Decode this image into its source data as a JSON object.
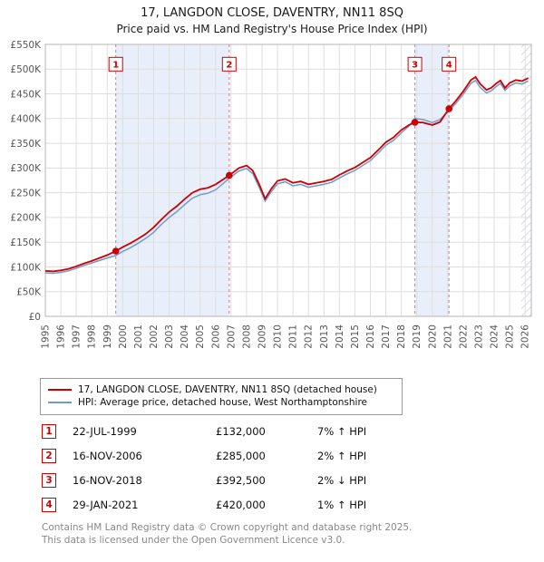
{
  "title": "17, LANGDON CLOSE, DAVENTRY, NN11 8SQ",
  "subtitle": "Price paid vs. HM Land Registry's House Price Index (HPI)",
  "legend": {
    "items": [
      {
        "label": "17, LANGDON CLOSE, DAVENTRY, NN11 8SQ (detached house)",
        "color": "#cc0000"
      },
      {
        "label": "HPI: Average price, detached house, West Northamptonshire",
        "color": "#6e9bd1"
      }
    ]
  },
  "transactions": [
    {
      "num": "1",
      "date": "22-JUL-1999",
      "price": "£132,000",
      "hpi_delta": "7% ↑ HPI",
      "direction": "up",
      "year": 1999.55,
      "value_k": 132
    },
    {
      "num": "2",
      "date": "16-NOV-2006",
      "price": "£285,000",
      "hpi_delta": "2% ↑ HPI",
      "direction": "up",
      "year": 2006.88,
      "value_k": 285
    },
    {
      "num": "3",
      "date": "16-NOV-2018",
      "price": "£392,500",
      "hpi_delta": "2% ↓ HPI",
      "direction": "down",
      "year": 2018.88,
      "value_k": 392.5
    },
    {
      "num": "4",
      "date": "29-JAN-2021",
      "price": "£420,000",
      "hpi_delta": "1% ↑ HPI",
      "direction": "up",
      "year": 2021.08,
      "value_k": 420
    }
  ],
  "footer": {
    "line1": "Contains HM Land Registry data © Crown copyright and database right 2025.",
    "line2": "This data is licensed under the Open Government Licence v3.0."
  },
  "chart_data": {
    "type": "line",
    "title": "17, LANGDON CLOSE, DAVENTRY, NN11 8SQ — Price paid vs. HPI",
    "xlabel": "",
    "ylabel": "",
    "grid": true,
    "legend_position": "bottom",
    "xlim": [
      1995,
      2026.4
    ],
    "ylim_k": [
      0,
      550
    ],
    "ytick_step": 50,
    "ytick_labels": [
      "£0",
      "£50K",
      "£100K",
      "£150K",
      "£200K",
      "£250K",
      "£300K",
      "£350K",
      "£400K",
      "£450K",
      "£500K",
      "£550K"
    ],
    "xticks": [
      1995,
      1996,
      1997,
      1998,
      1999,
      2000,
      2001,
      2002,
      2003,
      2004,
      2005,
      2006,
      2007,
      2008,
      2009,
      2010,
      2011,
      2012,
      2013,
      2014,
      2015,
      2016,
      2017,
      2018,
      2019,
      2020,
      2021,
      2022,
      2023,
      2024,
      2025,
      2026
    ],
    "band_color": "#e9effa",
    "bands": [
      [
        1999.55,
        2006.88
      ],
      [
        2018.88,
        2021.08
      ]
    ],
    "hatch": [
      2025.75,
      2026.4
    ],
    "marker_y_k": 510,
    "x": [
      1995,
      1995.5,
      1996,
      1996.5,
      1997,
      1997.5,
      1998,
      1998.5,
      1999,
      1999.55,
      2000,
      2000.5,
      2001,
      2001.5,
      2002,
      2002.5,
      2003,
      2003.5,
      2004,
      2004.5,
      2005,
      2005.5,
      2006,
      2006.88,
      2007.5,
      2008,
      2008.4,
      2008.8,
      2009.2,
      2009.6,
      2010,
      2010.5,
      2011,
      2011.5,
      2012,
      2012.5,
      2013,
      2013.5,
      2014,
      2014.5,
      2015,
      2015.5,
      2016,
      2016.5,
      2017,
      2017.5,
      2018,
      2018.5,
      2018.88,
      2019.4,
      2020,
      2020.5,
      2021.08,
      2021.5,
      2022,
      2022.5,
      2022.8,
      2023.1,
      2023.5,
      2023.8,
      2024.1,
      2024.4,
      2024.7,
      2025,
      2025.4,
      2025.8,
      2026.2
    ],
    "series": [
      {
        "name": "price-paid",
        "label": "17, LANGDON CLOSE, DAVENTRY, NN11 8SQ (detached house)",
        "color": "#cc0000",
        "width": 1.8,
        "values_k": [
          92,
          91,
          93,
          96,
          101,
          107,
          112,
          118,
          124,
          132,
          140,
          148,
          157,
          167,
          180,
          196,
          211,
          223,
          237,
          250,
          257,
          260,
          267,
          285,
          300,
          305,
          295,
          268,
          238,
          258,
          274,
          278,
          270,
          273,
          267,
          270,
          273,
          277,
          286,
          294,
          301,
          311,
          321,
          336,
          352,
          362,
          377,
          387,
          392.5,
          392,
          387,
          393,
          420,
          435,
          455,
          478,
          484,
          470,
          458,
          462,
          470,
          477,
          462,
          472,
          478,
          476,
          482
        ]
      },
      {
        "name": "hpi",
        "label": "HPI: Average price, detached house, West Northamptonshire",
        "color": "#6e9bd1",
        "width": 1.5,
        "values_k": [
          88,
          87,
          89,
          92,
          97,
          103,
          108,
          113,
          118,
          123,
          131,
          139,
          148,
          158,
          170,
          186,
          200,
          212,
          226,
          239,
          246,
          249,
          256,
          279,
          294,
          299,
          289,
          262,
          233,
          252,
          268,
          272,
          264,
          267,
          261,
          264,
          267,
          271,
          280,
          288,
          295,
          305,
          315,
          330,
          346,
          356,
          371,
          385,
          400,
          398,
          392,
          398,
          416,
          430,
          449,
          471,
          477,
          463,
          452,
          456,
          464,
          471,
          457,
          466,
          472,
          470,
          476
        ]
      }
    ]
  }
}
